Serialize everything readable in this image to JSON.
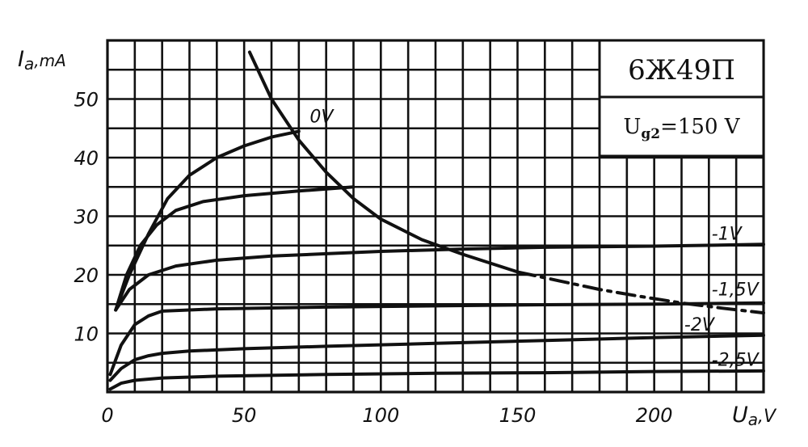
{
  "chart_data": {
    "type": "line",
    "title": "6Ж49П",
    "parameter": {
      "prefix": "U",
      "subscript": "g2",
      "value": "=150 V"
    },
    "xlabel": "U_a,V",
    "ylabel": "I_a,mA",
    "xlabel_parts": {
      "main": "U",
      "sub": "a",
      "unit": ",V"
    },
    "ylabel_parts": {
      "main": "I",
      "sub": "a",
      "unit": ",mA"
    },
    "xlim": [
      0,
      240
    ],
    "ylim": [
      0,
      60
    ],
    "x_ticks": [
      "0",
      "50",
      "100",
      "150",
      "200"
    ],
    "y_ticks": [
      "10",
      "20",
      "30",
      "40",
      "50"
    ],
    "x_tick_values": [
      0,
      50,
      100,
      150,
      200
    ],
    "y_tick_values": [
      10,
      20,
      30,
      40,
      50
    ],
    "grid": true,
    "minor_grid_step": {
      "x": 10,
      "y": 5
    },
    "series": [
      {
        "name": "0V",
        "label": "0V",
        "x": [
          3,
          8,
          15,
          22,
          30,
          40,
          50,
          60,
          70
        ],
        "y": [
          14,
          20,
          27,
          33,
          37,
          40,
          42,
          43.5,
          44.5
        ]
      },
      {
        "name": "",
        "label": "",
        "x": [
          3,
          7,
          12,
          18,
          25,
          35,
          50,
          70,
          90
        ],
        "y": [
          14,
          20,
          25,
          28.5,
          31,
          32.5,
          33.5,
          34.3,
          35
        ]
      },
      {
        "name": "-1V",
        "label": "-1V",
        "x": [
          3,
          8,
          15,
          25,
          40,
          60,
          80,
          100,
          130,
          160,
          200,
          240
        ],
        "y": [
          14,
          17.5,
          20,
          21.5,
          22.5,
          23.2,
          23.6,
          24,
          24.4,
          24.7,
          24.9,
          25.2
        ]
      },
      {
        "name": "-1,5V",
        "label": "-1,5V",
        "x": [
          1,
          5,
          10,
          15,
          20,
          40,
          80,
          120,
          160,
          200,
          240
        ],
        "y": [
          3,
          8,
          11.5,
          13,
          13.8,
          14.2,
          14.5,
          14.7,
          14.9,
          15,
          15.2
        ]
      },
      {
        "name": "-2V",
        "label": "-2V",
        "x": [
          1,
          5,
          10,
          15,
          20,
          30,
          50,
          80,
          120,
          160,
          200,
          240
        ],
        "y": [
          2,
          4,
          5.5,
          6.2,
          6.6,
          7,
          7.4,
          7.8,
          8.3,
          8.8,
          9.3,
          9.7
        ]
      },
      {
        "name": "-2,5V",
        "label": "-2,5V",
        "x": [
          1,
          5,
          10,
          20,
          40,
          80,
          120,
          160,
          200,
          240
        ],
        "y": [
          0.5,
          1.5,
          2,
          2.4,
          2.7,
          3,
          3.2,
          3.3,
          3.5,
          3.6
        ]
      }
    ],
    "power_limit": {
      "name": "",
      "solid": {
        "x": [
          52,
          60,
          70,
          80,
          90,
          100,
          115,
          130,
          150
        ],
        "y": [
          58,
          50,
          43,
          37.5,
          33,
          29.5,
          26,
          23.5,
          20.5
        ]
      },
      "dashed": {
        "x": [
          150,
          165,
          180,
          195,
          210,
          225,
          240
        ],
        "y": [
          20.5,
          19,
          17.5,
          16.3,
          15.2,
          14.3,
          13.5
        ]
      }
    },
    "curve_label_positions": {
      "0V": {
        "x": 74,
        "y": 46
      },
      "-1V": {
        "x": 221,
        "y": 26
      },
      "-1,5V": {
        "x": 221,
        "y": 16.5
      },
      "-2V": {
        "x": 211,
        "y": 10.5
      },
      "-2,5V": {
        "x": 221,
        "y": 4.5
      }
    }
  }
}
